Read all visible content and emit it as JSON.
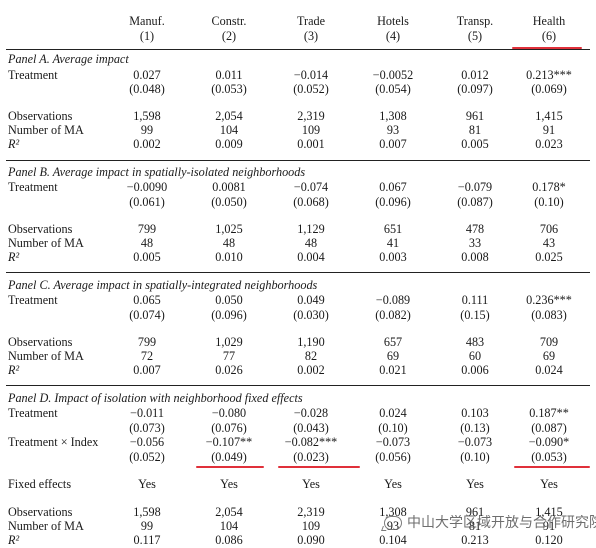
{
  "columns": [
    {
      "name": "Manuf.",
      "num": "(1)"
    },
    {
      "name": "Constr.",
      "num": "(2)"
    },
    {
      "name": "Trade",
      "num": "(3)"
    },
    {
      "name": "Hotels",
      "num": "(4)"
    },
    {
      "name": "Transp.",
      "num": "(5)"
    },
    {
      "name": "Health",
      "num": "(6)"
    }
  ],
  "panelA": {
    "title": "Panel A. Average impact",
    "treatment": {
      "label": "Treatment",
      "vals": [
        "0.027",
        "0.011",
        "−0.014",
        "−0.0052",
        "0.012",
        "0.213***"
      ],
      "se": [
        "(0.048)",
        "(0.053)",
        "(0.052)",
        "(0.054)",
        "(0.097)",
        "(0.069)"
      ]
    },
    "obs": {
      "label": "Observations",
      "vals": [
        "1,598",
        "2,054",
        "2,319",
        "1,308",
        "961",
        "1,415"
      ]
    },
    "ma": {
      "label": "Number of MA",
      "vals": [
        "99",
        "104",
        "109",
        "93",
        "81",
        "91"
      ]
    },
    "r2": {
      "label": "R²",
      "vals": [
        "0.002",
        "0.009",
        "0.001",
        "0.007",
        "0.005",
        "0.023"
      ]
    }
  },
  "panelB": {
    "title": "Panel B. Average impact in spatially-isolated neighborhoods",
    "treatment": {
      "label": "Treatment",
      "vals": [
        "−0.0090",
        "0.0081",
        "−0.074",
        "0.067",
        "−0.079",
        "0.178*"
      ],
      "se": [
        "(0.061)",
        "(0.050)",
        "(0.068)",
        "(0.096)",
        "(0.087)",
        "(0.10)"
      ]
    },
    "obs": {
      "label": "Observations",
      "vals": [
        "799",
        "1,025",
        "1,129",
        "651",
        "478",
        "706"
      ]
    },
    "ma": {
      "label": "Number of MA",
      "vals": [
        "48",
        "48",
        "48",
        "41",
        "33",
        "43"
      ]
    },
    "r2": {
      "label": "R²",
      "vals": [
        "0.005",
        "0.010",
        "0.004",
        "0.003",
        "0.008",
        "0.025"
      ]
    }
  },
  "panelC": {
    "title": "Panel C. Average impact in spatially-integrated neighborhoods",
    "treatment": {
      "label": "Treatment",
      "vals": [
        "0.065",
        "0.050",
        "0.049",
        "−0.089",
        "0.111",
        "0.236***"
      ],
      "se": [
        "(0.074)",
        "(0.096)",
        "(0.030)",
        "(0.082)",
        "(0.15)",
        "(0.083)"
      ]
    },
    "obs": {
      "label": "Observations",
      "vals": [
        "799",
        "1,029",
        "1,190",
        "657",
        "483",
        "709"
      ]
    },
    "ma": {
      "label": "Number of MA",
      "vals": [
        "72",
        "77",
        "82",
        "69",
        "60",
        "69"
      ]
    },
    "r2": {
      "label": "R²",
      "vals": [
        "0.007",
        "0.026",
        "0.002",
        "0.021",
        "0.006",
        "0.024"
      ]
    }
  },
  "panelD": {
    "title": "Panel D. Impact of isolation with neighborhood fixed effects",
    "treatment": {
      "label": "Treatment",
      "vals": [
        "−0.011",
        "−0.080",
        "−0.028",
        "0.024",
        "0.103",
        "0.187**"
      ],
      "se": [
        "(0.073)",
        "(0.076)",
        "(0.043)",
        "(0.10)",
        "(0.13)",
        "(0.087)"
      ]
    },
    "interaction": {
      "label": "Treatment × Index",
      "vals": [
        "−0.056",
        "−0.107**",
        "−0.082***",
        "−0.073",
        "−0.073",
        "−0.090*"
      ],
      "se": [
        "(0.052)",
        "(0.049)",
        "(0.023)",
        "(0.056)",
        "(0.10)",
        "(0.053)"
      ]
    },
    "fe": {
      "label": "Fixed effects",
      "vals": [
        "Yes",
        "Yes",
        "Yes",
        "Yes",
        "Yes",
        "Yes"
      ]
    },
    "obs": {
      "label": "Observations",
      "vals": [
        "1,598",
        "2,054",
        "2,319",
        "1,308",
        "961",
        "1,415"
      ]
    },
    "ma": {
      "label": "Number of MA",
      "vals": [
        "99",
        "104",
        "109",
        "93",
        "81",
        "91"
      ]
    },
    "r2": {
      "label": "R²",
      "vals": [
        "0.117",
        "0.086",
        "0.090",
        "0.104",
        "0.213",
        "0.120"
      ]
    }
  },
  "watermark": "中山大学区域开放与合作研究院",
  "highlight_color": "#e0303a"
}
